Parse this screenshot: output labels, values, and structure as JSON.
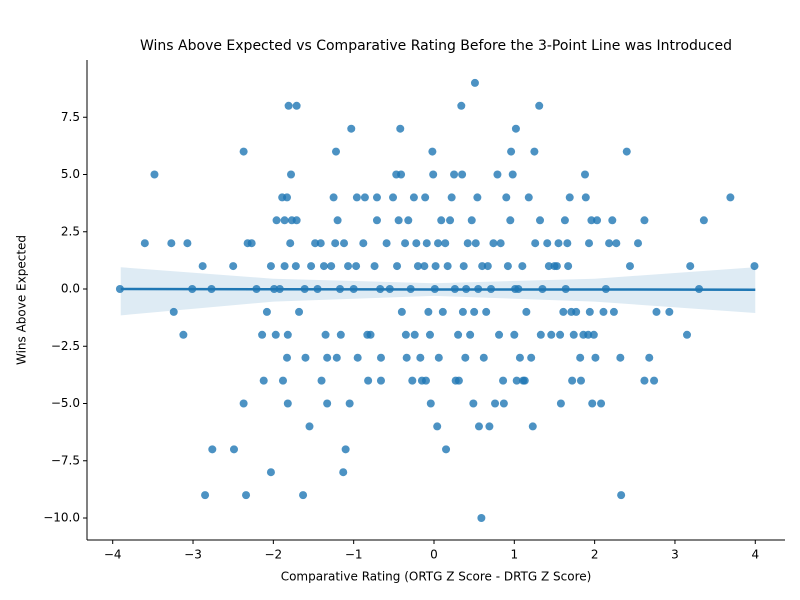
{
  "chart_data": {
    "type": "scatter",
    "title": "Wins Above Expected vs Comparative Rating Before the 3-Point Line was Introduced",
    "x_label": "Comparative Rating (ORTG Z Score - DRTG Z Score)",
    "y_label": "Wins Above Expected",
    "color": "#1f77b4",
    "x": [
      -3.91,
      -3.6,
      -3.48,
      -3.27,
      -3.24,
      -3.12,
      -3.07,
      -3.01,
      -2.88,
      -2.85,
      -2.77,
      -2.76,
      -2.5,
      -2.49,
      -2.37,
      -2.37,
      -2.34,
      -2.32,
      -2.27,
      -2.21,
      -2.14,
      -2.12,
      -2.08,
      -2.03,
      -2.03,
      -1.99,
      -1.97,
      -1.96,
      -1.92,
      -1.89,
      -1.88,
      -1.86,
      -1.86,
      -1.83,
      -1.83,
      -1.82,
      -1.82,
      -1.81,
      -1.79,
      -1.78,
      -1.77,
      -1.72,
      -1.71,
      -1.71,
      -1.68,
      -1.63,
      -1.61,
      -1.6,
      -1.55,
      -1.53,
      -1.48,
      -1.45,
      -1.41,
      -1.4,
      -1.37,
      -1.35,
      -1.33,
      -1.33,
      -1.28,
      -1.25,
      -1.23,
      -1.22,
      -1.21,
      -1.2,
      -1.17,
      -1.16,
      -1.13,
      -1.12,
      -1.1,
      -1.07,
      -1.05,
      -1.03,
      -1.0,
      -0.97,
      -0.96,
      -0.95,
      -0.88,
      -0.86,
      -0.83,
      -0.82,
      -0.79,
      -0.74,
      -0.71,
      -0.71,
      -0.67,
      -0.66,
      -0.66,
      -0.59,
      -0.55,
      -0.51,
      -0.47,
      -0.46,
      -0.44,
      -0.42,
      -0.41,
      -0.4,
      -0.36,
      -0.35,
      -0.34,
      -0.32,
      -0.29,
      -0.27,
      -0.25,
      -0.24,
      -0.22,
      -0.2,
      -0.17,
      -0.15,
      -0.12,
      -0.11,
      -0.1,
      -0.09,
      -0.07,
      -0.05,
      -0.04,
      -0.02,
      -0.01,
      0.01,
      0.02,
      0.04,
      0.05,
      0.06,
      0.09,
      0.11,
      0.14,
      0.15,
      0.17,
      0.2,
      0.22,
      0.25,
      0.26,
      0.27,
      0.3,
      0.31,
      0.34,
      0.35,
      0.36,
      0.37,
      0.39,
      0.4,
      0.42,
      0.45,
      0.47,
      0.49,
      0.5,
      0.51,
      0.52,
      0.54,
      0.55,
      0.56,
      0.59,
      0.6,
      0.62,
      0.65,
      0.67,
      0.69,
      0.71,
      0.74,
      0.76,
      0.79,
      0.81,
      0.83,
      0.86,
      0.87,
      0.9,
      0.92,
      0.95,
      0.96,
      0.98,
      1.0,
      1.01,
      1.02,
      1.03,
      1.05,
      1.07,
      1.1,
      1.11,
      1.13,
      1.15,
      1.18,
      1.21,
      1.23,
      1.25,
      1.26,
      1.31,
      1.32,
      1.35,
      1.33,
      1.41,
      1.43,
      1.46,
      1.5,
      1.53,
      1.55,
      1.57,
      1.58,
      1.61,
      1.63,
      1.64,
      1.66,
      1.67,
      1.69,
      1.71,
      1.72,
      1.74,
      1.77,
      1.82,
      1.83,
      1.86,
      1.88,
      1.89,
      1.92,
      1.93,
      1.94,
      1.96,
      1.97,
      1.99,
      2.01,
      2.03,
      2.08,
      2.11,
      2.14,
      2.18,
      2.22,
      2.24,
      2.27,
      2.32,
      2.33,
      2.4,
      2.44,
      2.54,
      2.62,
      2.62,
      2.68,
      2.74,
      2.77,
      2.93,
      3.15,
      3.19,
      3.3,
      3.36,
      3.69,
      3.99
    ],
    "values": [
      0,
      2,
      5,
      2,
      -1,
      -2,
      2,
      0,
      1,
      -9,
      0,
      -7,
      1,
      -7,
      6,
      -5,
      -9,
      2,
      2,
      0,
      -2,
      -4,
      -1,
      1,
      -8,
      0,
      -2,
      3,
      0,
      4,
      -4,
      1,
      3,
      4,
      -3,
      -5,
      -2,
      8,
      2,
      5,
      3,
      1,
      8,
      3,
      -1,
      -9,
      0,
      -3,
      -6,
      1,
      2,
      0,
      2,
      -4,
      1,
      -2,
      -3,
      -5,
      1,
      4,
      2,
      6,
      -3,
      3,
      0,
      -2,
      -8,
      2,
      -7,
      1,
      -5,
      7,
      0,
      1,
      4,
      -3,
      2,
      4,
      -2,
      -4,
      -2,
      1,
      4,
      3,
      0,
      -3,
      -4,
      2,
      0,
      4,
      5,
      1,
      3,
      7,
      5,
      -1,
      2,
      -2,
      -3,
      3,
      0,
      -4,
      4,
      -2,
      2,
      1,
      -3,
      -4,
      1,
      4,
      -4,
      2,
      -1,
      -2,
      -5,
      6,
      5,
      0,
      1,
      -6,
      2,
      -3,
      3,
      -1,
      2,
      -7,
      1,
      3,
      4,
      5,
      0,
      -4,
      -2,
      -4,
      8,
      5,
      -1,
      1,
      -3,
      0,
      2,
      -2,
      3,
      -5,
      -1,
      9,
      2,
      4,
      0,
      -6,
      -10,
      1,
      -3,
      -1,
      1,
      -6,
      0,
      2,
      -5,
      5,
      -2,
      2,
      -4,
      -5,
      4,
      1,
      3,
      6,
      5,
      -2,
      0,
      7,
      -4,
      0,
      -3,
      1,
      -4,
      -4,
      -1,
      4,
      -3,
      -6,
      6,
      2,
      8,
      3,
      0,
      -2,
      2,
      1,
      -2,
      1,
      1,
      2,
      -2,
      -5,
      -1,
      3,
      0,
      2,
      1,
      4,
      -1,
      -4,
      -2,
      -1,
      -3,
      -4,
      -2,
      5,
      4,
      -2,
      2,
      -1,
      3,
      -5,
      -2,
      -3,
      3,
      -5,
      -1,
      0,
      2,
      3,
      -1,
      2,
      -3,
      -9,
      6,
      1,
      2,
      3,
      -4,
      -3,
      -4,
      -1,
      -1,
      -2,
      1,
      0,
      3,
      4,
      1
    ],
    "fit": {
      "x": [
        -3.9,
        -2,
        0,
        2,
        4
      ],
      "y": [
        0.0,
        -0.01,
        -0.02,
        -0.02,
        -0.03
      ],
      "upper": [
        0.95,
        0.45,
        0.25,
        0.45,
        0.95
      ],
      "lower": [
        -1.15,
        -0.55,
        -0.3,
        -0.55,
        -1.05
      ]
    },
    "xlim": [
      -4.32,
      4.37
    ],
    "ylim": [
      -10.96,
      10.0
    ],
    "xticks": [
      {
        "value": -4,
        "label": "−4"
      },
      {
        "value": -3,
        "label": "−3"
      },
      {
        "value": -2,
        "label": "−2"
      },
      {
        "value": -1,
        "label": "−1"
      },
      0,
      1,
      2,
      3,
      4
    ],
    "yticks": [
      {
        "value": -10,
        "label": "−10.0"
      },
      {
        "value": -7.5,
        "label": "−7.5"
      },
      {
        "value": -5,
        "label": "−5.0"
      },
      {
        "value": -2.5,
        "label": "−2.5"
      },
      {
        "value": 0,
        "label": "0.0"
      },
      {
        "value": 2.5,
        "label": "2.5"
      },
      {
        "value": 5,
        "label": "5.0"
      },
      {
        "value": 7.5,
        "label": "7.5"
      }
    ],
    "grid": false
  }
}
